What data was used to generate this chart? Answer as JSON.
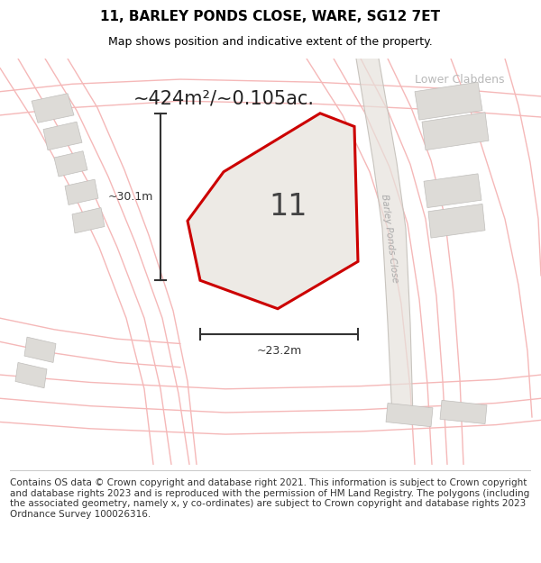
{
  "title": "11, BARLEY PONDS CLOSE, WARE, SG12 7ET",
  "subtitle": "Map shows position and indicative extent of the property.",
  "area_text": "~424m²/~0.105ac.",
  "width_label": "~23.2m",
  "height_label": "~30.1m",
  "plot_number": "11",
  "road_label": "Barley Ponds Close",
  "area_label": "Lower Clabdens",
  "footer": "Contains OS data © Crown copyright and database right 2021. This information is subject to Crown copyright and database rights 2023 and is reproduced with the permission of HM Land Registry. The polygons (including the associated geometry, namely x, y co-ordinates) are subject to Crown copyright and database rights 2023 Ordnance Survey 100026316.",
  "map_bg": "#f2f0ed",
  "plot_outline_color": "#cc0000",
  "title_fontsize": 11,
  "subtitle_fontsize": 9,
  "footer_fontsize": 7.5,
  "road_color": "#f5b8b8",
  "road_lw": 1.0,
  "building_fill": "#dddbd7",
  "building_edge": "#c0bebb",
  "road_band_color": "#e8e4df",
  "label_color": "#aaaaaa",
  "dim_color": "#333333",
  "text_color": "#222222"
}
